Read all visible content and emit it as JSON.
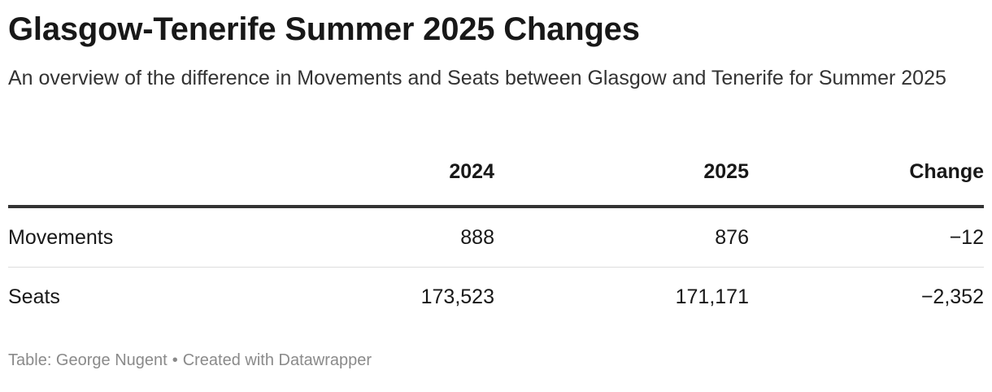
{
  "title": "Glasgow-Tenerife Summer 2025 Changes",
  "subtitle": "An overview of the difference in Movements and Seats between Glasgow and Tenerife for Summer 2025",
  "chart_data": {
    "type": "table",
    "columns": [
      "",
      "2024",
      "2025",
      "Change"
    ],
    "rows": [
      {
        "label": "Movements",
        "y2024": "888",
        "y2025": "876",
        "change": "−12"
      },
      {
        "label": "Seats",
        "y2024": "173,523",
        "y2025": "171,171",
        "change": "−2,352"
      }
    ]
  },
  "footer": {
    "source": "Table: George Nugent",
    "separator": "•",
    "credit": "Created with Datawrapper"
  }
}
